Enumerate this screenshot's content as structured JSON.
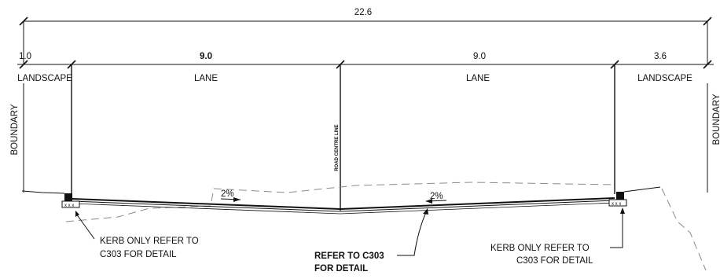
{
  "dimensions": {
    "overall": "22.6",
    "left_landscape": "1.0",
    "left_lane": "9.0",
    "right_lane": "9.0",
    "right_landscape": "3.6"
  },
  "zones": {
    "left_landscape": "LANDSCAPE",
    "left_lane": "LANE",
    "right_lane": "LANE",
    "right_landscape": "LANDSCAPE"
  },
  "boundary": {
    "left": "BOUNDARY",
    "right": "BOUNDARY"
  },
  "centreline": "ROAD CENTRE LINE",
  "grades": {
    "left": "2%",
    "right": "2%"
  },
  "notes": {
    "left_kerb_line1": "KERB ONLY REFER TO",
    "left_kerb_line2": "C303 FOR DETAIL",
    "centre_line1": "REFER TO C303",
    "centre_line2": "FOR DETAIL",
    "right_kerb_line1": "KERB ONLY REFER TO",
    "right_kerb_line2": "C303 FOR DETAIL"
  }
}
